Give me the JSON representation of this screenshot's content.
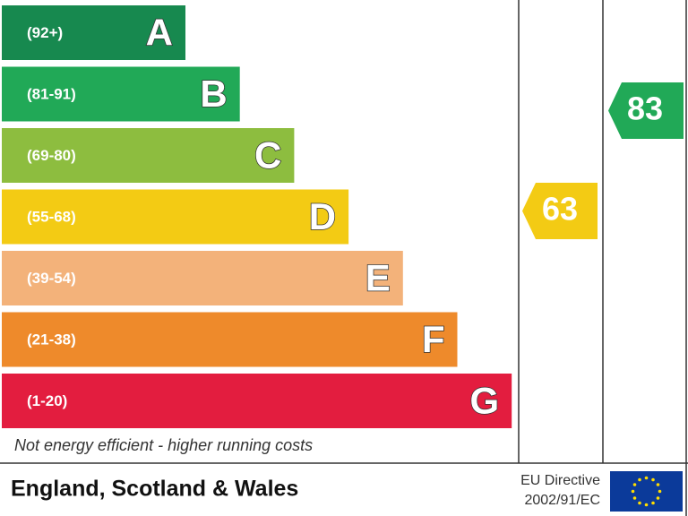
{
  "bands": [
    {
      "range": "(92+)",
      "letter": "A",
      "color": "#17894f"
    },
    {
      "range": "(81-91)",
      "letter": "B",
      "color": "#21a957"
    },
    {
      "range": "(69-80)",
      "letter": "C",
      "color": "#8dbd3f"
    },
    {
      "range": "(55-68)",
      "letter": "D",
      "color": "#f3cb14"
    },
    {
      "range": "(39-54)",
      "letter": "E",
      "color": "#f3b27a"
    },
    {
      "range": "(21-38)",
      "letter": "F",
      "color": "#ee8a2b"
    },
    {
      "range": "(1-20)",
      "letter": "G",
      "color": "#e31d3f"
    }
  ],
  "current": {
    "value": 63,
    "color": "#f3cb14"
  },
  "potential": {
    "value": 83,
    "color": "#21a957"
  },
  "footer_note": "Not energy efficient - higher running costs",
  "region": "England, Scotland & Wales",
  "directive": {
    "line1": "EU Directive",
    "line2": "2002/91/EC"
  }
}
